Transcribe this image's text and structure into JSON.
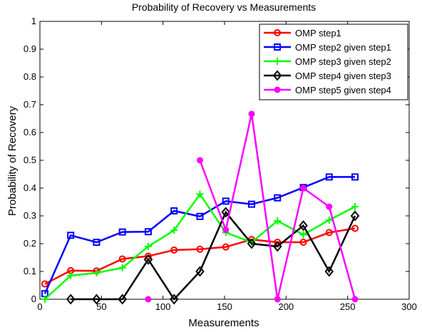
{
  "chart_data": {
    "type": "line",
    "title": "Probability of Recovery vs Measurements",
    "xlabel": "Measurements",
    "ylabel": "Probability of Recovery",
    "xlim": [
      0,
      300
    ],
    "ylim": [
      0,
      1
    ],
    "xticks": [
      0,
      50,
      100,
      150,
      200,
      250,
      300
    ],
    "yticks": [
      0,
      0.1,
      0.2,
      0.3,
      0.4,
      0.5,
      0.6,
      0.7,
      0.8,
      0.9,
      1
    ],
    "grid": false,
    "legend_position": "top-right",
    "series": [
      {
        "name": "OMP step1",
        "color": "#ff0000",
        "marker": "circle",
        "x": [
          4,
          25,
          46,
          67,
          88,
          109,
          130,
          151,
          172,
          193,
          214,
          235,
          256
        ],
        "y": [
          0.055,
          0.103,
          0.102,
          0.145,
          0.155,
          0.177,
          0.18,
          0.188,
          0.215,
          0.205,
          0.205,
          0.24,
          0.255
        ]
      },
      {
        "name": "OMP step2 given step1",
        "color": "#0000ff",
        "marker": "square",
        "x": [
          4,
          25,
          46,
          67,
          88,
          109,
          130,
          151,
          172,
          193,
          214,
          235,
          256
        ],
        "y": [
          0.02,
          0.23,
          0.205,
          0.242,
          0.243,
          0.318,
          0.298,
          0.353,
          0.342,
          0.365,
          0.402,
          0.44,
          0.44
        ]
      },
      {
        "name": "OMP step3 given step2",
        "color": "#00ff00",
        "marker": "plus",
        "x": [
          4,
          25,
          46,
          67,
          88,
          109,
          130,
          151,
          172,
          193,
          214,
          235,
          256
        ],
        "y": [
          0.0,
          0.085,
          0.095,
          0.113,
          0.19,
          0.248,
          0.378,
          0.24,
          0.205,
          0.282,
          0.232,
          0.285,
          0.333
        ]
      },
      {
        "name": "OMP step4 given step3",
        "color": "#000000",
        "marker": "diamond",
        "x": [
          25,
          46,
          67,
          88,
          109,
          130,
          151,
          172,
          193,
          214,
          235,
          256
        ],
        "y": [
          0.0,
          0.0,
          0.0,
          0.143,
          0.0,
          0.1,
          0.313,
          0.2,
          0.19,
          0.265,
          0.1,
          0.3
        ]
      },
      {
        "name": "OMP step5 given step4",
        "color": "#ff00ff",
        "marker": "dot",
        "x": [
          88,
          null,
          130,
          151,
          172,
          193,
          214,
          235,
          256
        ],
        "y": [
          0.0,
          null,
          0.5,
          0.25,
          0.667,
          0.0,
          0.4,
          0.333,
          0.0
        ]
      }
    ]
  }
}
